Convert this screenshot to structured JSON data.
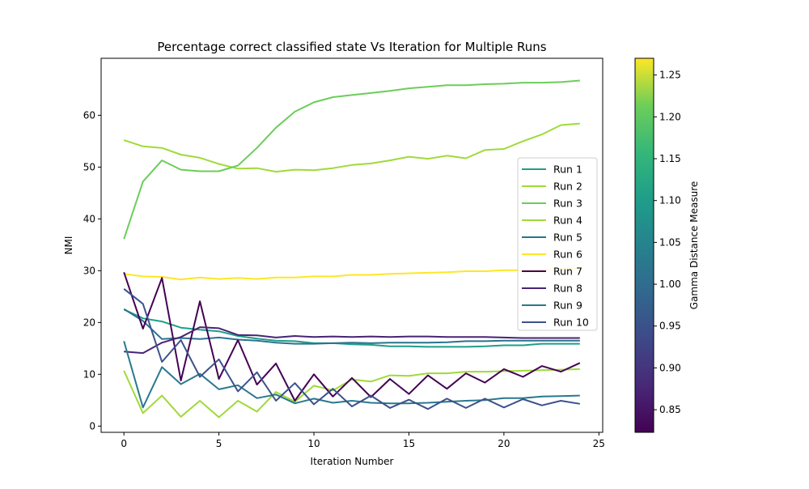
{
  "chart_data": {
    "type": "line",
    "title": "Percentage correct classified state Vs Iteration for Multiple Runs",
    "xlabel": "Iteration Number",
    "ylabel": "NMI",
    "xlim": [
      -1.2,
      25.2
    ],
    "ylim": [
      -1.2,
      71.0
    ],
    "xticks": [
      0,
      5,
      10,
      15,
      20,
      25
    ],
    "yticks": [
      0,
      10,
      20,
      30,
      40,
      50,
      60
    ],
    "x": [
      0,
      1,
      2,
      3,
      4,
      5,
      6,
      7,
      8,
      9,
      10,
      11,
      12,
      13,
      14,
      15,
      16,
      17,
      18,
      19,
      20,
      21,
      22,
      23,
      24
    ],
    "legend_position": "center-right",
    "grid": false,
    "colorbar": {
      "label": "Gamma Distance Measure",
      "min": 0.823,
      "max": 1.27,
      "ticks": [
        0.85,
        0.9,
        0.95,
        1.0,
        1.05,
        1.1,
        1.15,
        1.2,
        1.25
      ],
      "tick_labels": [
        "0.85",
        "0.90",
        "0.95",
        "1.00",
        "1.05",
        "1.10",
        "1.15",
        "1.20",
        "1.25"
      ]
    },
    "series": [
      {
        "name": "Run 1",
        "color": "#1f9e89",
        "values": [
          22.5,
          20.8,
          20.2,
          19.0,
          18.6,
          18.3,
          17.4,
          16.9,
          16.5,
          16.4,
          16.0,
          16.0,
          15.8,
          15.7,
          15.4,
          15.4,
          15.3,
          15.3,
          15.3,
          15.4,
          15.6,
          15.6,
          15.9,
          15.9,
          15.9
        ]
      },
      {
        "name": "Run 2",
        "color": "#a0da39",
        "values": [
          55.2,
          54.0,
          53.7,
          52.4,
          51.8,
          50.6,
          49.7,
          49.8,
          49.1,
          49.5,
          49.4,
          49.8,
          50.4,
          50.7,
          51.3,
          52.0,
          51.6,
          52.2,
          51.7,
          53.3,
          53.5,
          55.0,
          56.3,
          58.1,
          58.4
        ]
      },
      {
        "name": "Run 3",
        "color": "#6ccd5a",
        "values": [
          36.1,
          47.2,
          51.3,
          49.5,
          49.2,
          49.2,
          50.3,
          53.7,
          57.6,
          60.7,
          62.5,
          63.5,
          63.9,
          64.3,
          64.7,
          65.2,
          65.5,
          65.8,
          65.8,
          66.0,
          66.1,
          66.3,
          66.3,
          66.4,
          66.7
        ]
      },
      {
        "name": "Run 4",
        "color": "#a0da39",
        "values": [
          10.7,
          2.5,
          5.9,
          1.8,
          4.9,
          1.7,
          4.9,
          2.8,
          6.6,
          4.7,
          7.8,
          6.9,
          9.0,
          8.6,
          9.8,
          9.7,
          10.2,
          10.2,
          10.5,
          10.5,
          10.6,
          10.7,
          10.8,
          10.9,
          11.0
        ]
      },
      {
        "name": "Run 5",
        "color": "#2c728e",
        "values": [
          22.6,
          20.3,
          16.8,
          17.0,
          16.8,
          17.1,
          16.7,
          16.5,
          16.1,
          15.9,
          15.9,
          16.0,
          16.1,
          16.0,
          16.1,
          16.1,
          16.1,
          16.2,
          16.4,
          16.4,
          16.5,
          16.5,
          16.5,
          16.5,
          16.5
        ]
      },
      {
        "name": "Run 6",
        "color": "#fde725",
        "values": [
          29.4,
          28.9,
          28.8,
          28.3,
          28.7,
          28.4,
          28.6,
          28.4,
          28.7,
          28.7,
          28.9,
          28.9,
          29.2,
          29.2,
          29.4,
          29.5,
          29.6,
          29.7,
          29.9,
          29.9,
          30.1,
          30.1,
          30.2,
          30.4,
          30.5
        ]
      },
      {
        "name": "Run 7",
        "color": "#440154",
        "values": [
          29.7,
          18.8,
          28.6,
          8.8,
          24.1,
          9.1,
          16.6,
          8.0,
          12.1,
          4.9,
          10.0,
          5.7,
          9.3,
          5.6,
          9.1,
          6.2,
          9.8,
          7.2,
          10.2,
          8.4,
          11.0,
          9.5,
          11.6,
          10.5,
          12.2
        ]
      },
      {
        "name": "Run 8",
        "color": "#482475",
        "values": [
          14.4,
          14.1,
          16.1,
          17.2,
          19.1,
          18.9,
          17.6,
          17.5,
          17.1,
          17.4,
          17.2,
          17.3,
          17.2,
          17.3,
          17.2,
          17.3,
          17.3,
          17.2,
          17.2,
          17.2,
          17.1,
          17.0,
          17.0,
          17.0,
          17.0
        ]
      },
      {
        "name": "Run 9",
        "color": "#2a788e",
        "values": [
          16.4,
          3.6,
          11.4,
          8.1,
          10.1,
          7.1,
          7.9,
          5.4,
          6.1,
          4.4,
          5.3,
          4.5,
          4.9,
          4.5,
          4.4,
          4.4,
          4.5,
          4.7,
          4.9,
          5.0,
          5.4,
          5.4,
          5.7,
          5.8,
          5.9
        ]
      },
      {
        "name": "Run 10",
        "color": "#3b528b",
        "values": [
          26.5,
          23.6,
          12.4,
          16.6,
          9.5,
          12.9,
          6.7,
          10.4,
          4.9,
          8.3,
          4.2,
          7.2,
          3.8,
          5.9,
          3.5,
          5.1,
          3.3,
          5.3,
          3.5,
          5.3,
          3.6,
          5.2,
          4.0,
          4.9,
          4.3
        ]
      }
    ]
  }
}
